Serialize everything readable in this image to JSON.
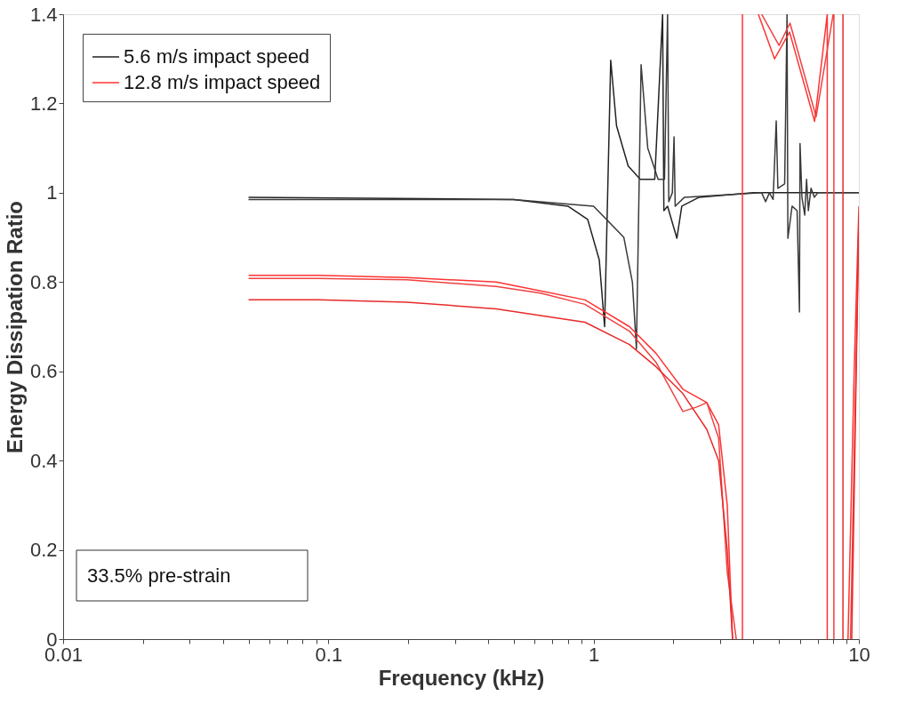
{
  "chart_data": {
    "type": "line",
    "xlabel": "Frequency (kHz)",
    "ylabel": "Energy Dissipation Ratio",
    "log": "x",
    "legend": "top left",
    "xlim": [
      0.01,
      10
    ],
    "ylim": [
      0,
      1.4
    ],
    "xticks": [
      0.01,
      {
        "value": 0.02,
        "label": null
      },
      {
        "value": 0.03,
        "label": null
      },
      {
        "value": 0.04,
        "label": null
      },
      {
        "value": 0.05,
        "label": null
      },
      {
        "value": 0.06,
        "label": null
      },
      {
        "value": 0.07,
        "label": null
      },
      {
        "value": 0.08,
        "label": null
      },
      {
        "value": 0.09,
        "label": null
      },
      0.1,
      {
        "value": 0.2,
        "label": null
      },
      {
        "value": 0.3,
        "label": null
      },
      {
        "value": 0.4,
        "label": null
      },
      {
        "value": 0.5,
        "label": null
      },
      {
        "value": 0.6,
        "label": null
      },
      {
        "value": 0.7,
        "label": null
      },
      {
        "value": 0.8,
        "label": null
      },
      {
        "value": 0.9,
        "label": null
      },
      1,
      {
        "value": 2,
        "label": null
      },
      {
        "value": 3,
        "label": null
      },
      {
        "value": 4,
        "label": null
      },
      {
        "value": 5,
        "label": null
      },
      {
        "value": 6,
        "label": null
      },
      {
        "value": 7,
        "label": null
      },
      {
        "value": 8,
        "label": null
      },
      {
        "value": 9,
        "label": null
      },
      10
    ],
    "yticks": [
      0,
      0.2,
      0.4,
      0.6,
      0.8,
      1,
      1.2,
      1.4
    ],
    "series": [
      {
        "name": "5.6 m/s impact speed",
        "color": "#222222",
        "x": [
          0.05,
          0.5,
          0.8,
          0.95,
          1.05,
          1.1,
          1.16,
          1.22,
          1.35,
          1.5,
          1.7,
          1.82,
          1.84,
          1.9,
          2.06,
          2.15,
          2.5,
          4,
          10
        ],
        "values": [
          0.99,
          0.985,
          0.97,
          0.94,
          0.85,
          0.7,
          1.297,
          1.15,
          1.06,
          1.03,
          1.03,
          1.4,
          0.96,
          0.97,
          0.898,
          0.97,
          0.99,
          1.0,
          1.0
        ]
      },
      {
        "color": "#3a3a3a",
        "x": [
          0.05,
          0.5,
          1.0,
          1.3,
          1.4,
          1.45,
          1.51,
          1.6,
          1.75,
          1.85,
          1.9,
          1.92,
          1.98,
          2.01,
          2.03,
          2.2,
          4.3,
          4.45,
          4.6,
          4.75,
          4.88,
          4.95,
          5.25,
          5.36,
          5.4,
          5.6,
          5.85,
          5.97,
          6.0,
          6.1,
          6.25,
          6.35,
          6.45,
          6.6,
          6.8,
          7.0,
          10
        ],
        "values": [
          0.985,
          0.985,
          0.97,
          0.9,
          0.8,
          0.65,
          1.287,
          1.1,
          1.03,
          1.03,
          1.4,
          0.98,
          1.0,
          1.125,
          0.97,
          0.99,
          1.0,
          0.98,
          1.0,
          0.985,
          1.161,
          1.01,
          1.02,
          1.4,
          0.898,
          0.97,
          0.96,
          0.733,
          1.11,
          0.99,
          0.95,
          1.03,
          0.96,
          1.01,
          0.99,
          1.0,
          1.0
        ]
      },
      {
        "name": "12.8 m/s impact speed",
        "color": "#ff3333",
        "x": [
          0.05,
          0.0917,
          0.198,
          0.429,
          0.631,
          0.928,
          1.365,
          1.72,
          2.17,
          2.67,
          2.96,
          3.19,
          3.34,
          null,
          3.64,
          3.64,
          null,
          4.18,
          4.81,
          5.48,
          6.81,
          7.6,
          null,
          7.6,
          7.6,
          null,
          9.1,
          9.6,
          10
        ],
        "values": [
          0.815,
          0.815,
          0.81,
          0.8,
          0.78,
          0.76,
          0.7,
          0.64,
          0.56,
          0.53,
          0.48,
          0.3,
          0,
          null,
          0,
          1.4,
          null,
          1.4,
          1.3,
          1.36,
          1.16,
          1.4,
          null,
          0,
          1.4,
          null,
          0,
          0.6,
          0.97
        ]
      },
      {
        "color": "#f04040",
        "x": [
          0.05,
          0.0917,
          0.198,
          0.429,
          0.631,
          0.928,
          1.365,
          1.72,
          2.17,
          2.45,
          2.67,
          2.96,
          3.19,
          3.45,
          null,
          4.3,
          5.0,
          5.5,
          6.9,
          8.0,
          null,
          8.05,
          8.05,
          null,
          9.3,
          10
        ],
        "values": [
          0.808,
          0.808,
          0.805,
          0.79,
          0.775,
          0.75,
          0.69,
          0.62,
          0.51,
          0.52,
          0.53,
          0.45,
          0.15,
          0,
          null,
          1.4,
          1.33,
          1.38,
          1.17,
          1.4,
          null,
          0,
          1.4,
          null,
          0,
          0.93
        ]
      },
      {
        "color": "#e82a2a",
        "x": [
          0.05,
          0.0917,
          0.198,
          0.429,
          0.631,
          0.928,
          1.365,
          1.72,
          2.17,
          2.67,
          2.96,
          3.19,
          3.34,
          null,
          8.71,
          8.71,
          null,
          9.4,
          10
        ],
        "values": [
          0.76,
          0.76,
          0.755,
          0.74,
          0.725,
          0.71,
          0.66,
          0.61,
          0.55,
          0.47,
          0.4,
          0.2,
          0,
          null,
          0,
          1.4,
          null,
          0,
          0.95
        ]
      }
    ],
    "annotations": [
      "33.5% pre-strain"
    ]
  }
}
